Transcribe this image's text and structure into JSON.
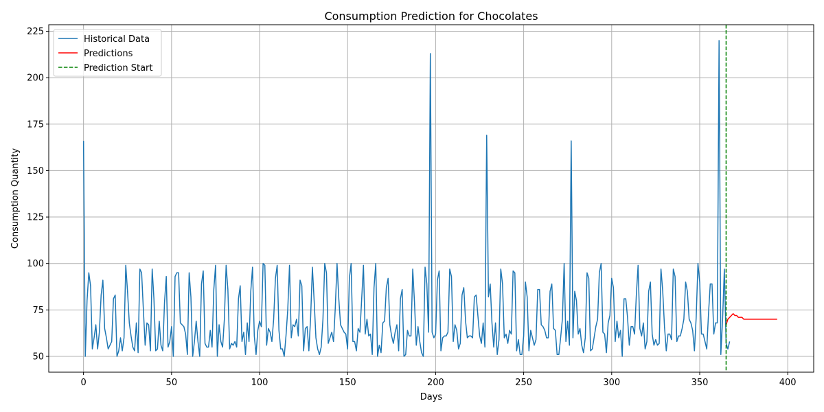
{
  "chart_data": {
    "type": "line",
    "title": "Consumption Prediction for Chocolates",
    "xlabel": "Days",
    "ylabel": "Consumption Quantity",
    "xlim": [
      -19.75,
      414.75
    ],
    "ylim": [
      41.5,
      228.5
    ],
    "xticks": [
      0,
      50,
      100,
      150,
      200,
      250,
      300,
      350,
      400
    ],
    "yticks": [
      50,
      75,
      100,
      125,
      150,
      175,
      200,
      225
    ],
    "grid": true,
    "legend_position": "upper-left",
    "colors": {
      "historical": "#1f77b4",
      "predictions": "#ff0000",
      "prediction_start": "#008000",
      "grid": "#b0b0b0",
      "axes": "#000000"
    },
    "series": [
      {
        "name": "Historical Data",
        "style": "solid",
        "x_start": 0,
        "values": [
          166,
          50,
          80,
          95,
          88,
          54,
          60,
          67,
          54,
          63,
          83,
          91,
          65,
          60,
          54,
          56,
          58,
          81,
          83,
          50,
          53,
          60,
          53,
          60,
          99,
          85,
          68,
          61,
          55,
          53,
          68,
          52,
          97,
          95,
          75,
          56,
          68,
          67,
          53,
          97,
          81,
          53,
          54,
          69,
          56,
          53,
          79,
          93,
          55,
          58,
          66,
          50,
          93,
          95,
          95,
          68,
          67,
          66,
          62,
          51,
          95,
          82,
          50,
          58,
          69,
          58,
          50,
          89,
          96,
          57,
          55,
          55,
          64,
          55,
          86,
          99,
          50,
          67,
          58,
          55,
          70,
          99,
          86,
          54,
          57,
          56,
          58,
          55,
          81,
          88,
          58,
          63,
          51,
          68,
          58,
          85,
          98,
          61,
          51,
          64,
          69,
          66,
          100,
          99,
          56,
          65,
          63,
          58,
          70,
          92,
          99,
          64,
          54,
          54,
          50,
          61,
          75,
          99,
          60,
          67,
          66,
          70,
          61,
          91,
          88,
          53,
          65,
          66,
          53,
          71,
          98,
          80,
          60,
          54,
          51,
          55,
          70,
          100,
          95,
          57,
          60,
          63,
          58,
          76,
          100,
          81,
          67,
          65,
          63,
          62,
          54,
          92,
          100,
          58,
          58,
          53,
          65,
          63,
          81,
          99,
          62,
          70,
          61,
          62,
          51,
          87,
          100,
          50,
          56,
          52,
          68,
          69,
          87,
          92,
          67,
          61,
          57,
          63,
          67,
          53,
          81,
          86,
          50,
          51,
          64,
          61,
          61,
          97,
          79,
          56,
          66,
          58,
          52,
          50,
          98,
          89,
          63,
          213,
          63,
          60,
          62,
          91,
          96,
          53,
          60,
          61,
          61,
          63,
          97,
          93,
          58,
          67,
          64,
          54,
          57,
          83,
          87,
          69,
          60,
          61,
          61,
          60,
          82,
          83,
          72,
          61,
          57,
          68,
          55,
          169,
          82,
          89,
          68,
          55,
          68,
          51,
          59,
          97,
          89,
          60,
          62,
          57,
          64,
          62,
          96,
          95,
          53,
          59,
          51,
          51,
          61,
          90,
          82,
          53,
          64,
          60,
          56,
          59,
          86,
          86,
          67,
          66,
          64,
          60,
          60,
          85,
          89,
          65,
          64,
          51,
          51,
          60,
          70,
          100,
          58,
          69,
          56,
          166,
          60,
          85,
          80,
          62,
          65,
          56,
          52,
          60,
          95,
          92,
          53,
          54,
          60,
          66,
          70,
          95,
          100,
          63,
          62,
          52,
          68,
          72,
          92,
          87,
          58,
          69,
          60,
          64,
          50,
          81,
          81,
          71,
          56,
          66,
          66,
          62,
          83,
          99,
          65,
          61,
          68,
          54,
          58,
          85,
          90,
          62,
          56,
          59,
          56,
          57,
          97,
          85,
          66,
          53,
          62,
          62,
          59,
          97,
          93,
          58,
          61,
          61,
          65,
          70,
          90,
          85,
          70,
          68,
          64,
          53,
          71,
          100,
          90,
          62,
          62,
          58,
          54,
          73,
          89,
          89,
          62,
          68,
          68,
          220,
          51,
          70,
          97,
          57,
          54,
          58
        ]
      },
      {
        "name": "Predictions",
        "style": "solid",
        "x_start": 365,
        "values": [
          67,
          70,
          71,
          72,
          73,
          72,
          72,
          71,
          71,
          71,
          70,
          70,
          70,
          70,
          70,
          70,
          70,
          70,
          70,
          70,
          70,
          70,
          70,
          70,
          70,
          70,
          70,
          70,
          70,
          70
        ]
      },
      {
        "name": "Prediction Start",
        "style": "dashed",
        "vertical_x": 365
      }
    ]
  }
}
